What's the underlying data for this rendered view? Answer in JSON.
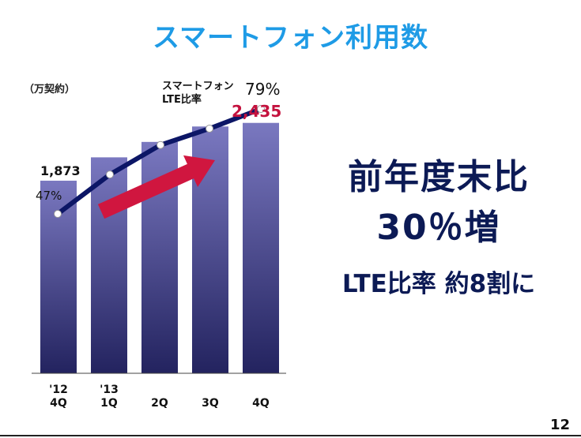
{
  "title": "スマートフォン利用数",
  "unit_label": "（万契約）",
  "lte_label_line1": "スマートフォン",
  "lte_label_line2": "LTE比率",
  "highlight": {
    "line1": "前年度末比",
    "line2": "30％増",
    "line3": "LTE比率 約8割に"
  },
  "page_number": "12",
  "colors": {
    "title": "#1e9be6",
    "bar_top": "#7a78c0",
    "bar_bottom": "#23235f",
    "line": "#0c1666",
    "arrow": "#d0163f",
    "highlight_value": "#c4123e",
    "big_text": "#0c1a55"
  },
  "chart_data": {
    "type": "bar",
    "categories": [
      {
        "year": "'12",
        "quarter": "4Q"
      },
      {
        "year": "'13",
        "quarter": "1Q"
      },
      {
        "year": "",
        "quarter": "2Q"
      },
      {
        "year": "",
        "quarter": "3Q"
      },
      {
        "year": "",
        "quarter": "4Q"
      }
    ],
    "values": [
      1873,
      2100,
      2250,
      2400,
      2435
    ],
    "value_labels": [
      "1,873",
      "",
      "",
      "",
      "2,435"
    ],
    "line_series": {
      "values": [
        47,
        59,
        68,
        73,
        79
      ],
      "labels": [
        "47%",
        "",
        "",
        "",
        "79%"
      ]
    },
    "grid": false,
    "legend": "none"
  }
}
